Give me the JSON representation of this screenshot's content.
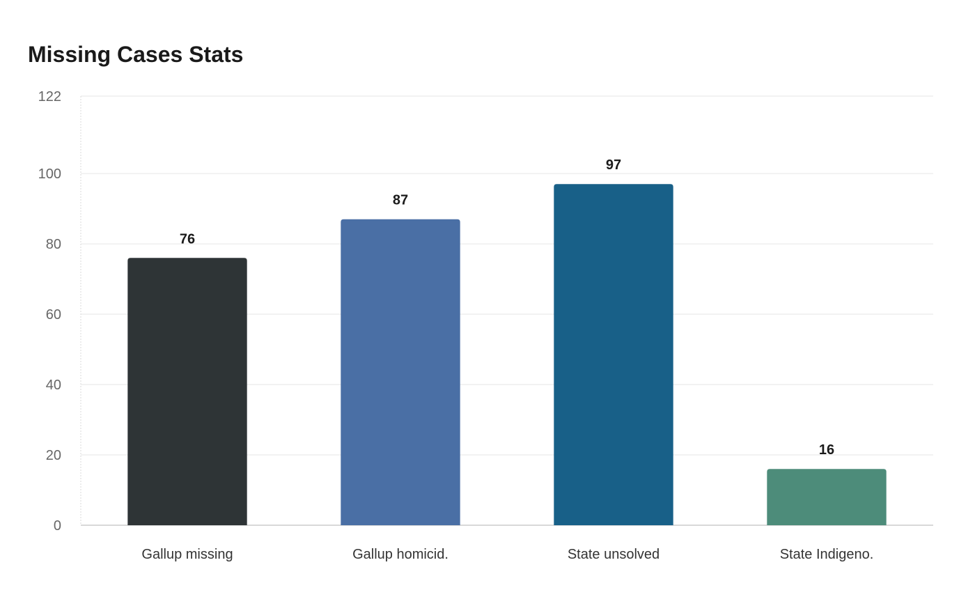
{
  "chart_data": {
    "type": "bar",
    "title": "Missing Cases Stats",
    "xlabel": "",
    "ylabel": "",
    "categories": [
      "Gallup missing",
      "Gallup homicid.",
      "State unsolved",
      "State Indigeno."
    ],
    "values": [
      76,
      87,
      97,
      16
    ],
    "data_labels": [
      "76",
      "87",
      "97",
      "16"
    ],
    "colors": [
      "#2e3436",
      "#4a6fa5",
      "#186088",
      "#4d8c7a"
    ],
    "ylim": [
      0,
      122
    ],
    "yticks": [
      0,
      20,
      40,
      60,
      80,
      100,
      122
    ],
    "ytick_labels": [
      "0",
      "20",
      "40",
      "60",
      "80",
      "100",
      "122"
    ],
    "grid": true,
    "legend": "none"
  }
}
